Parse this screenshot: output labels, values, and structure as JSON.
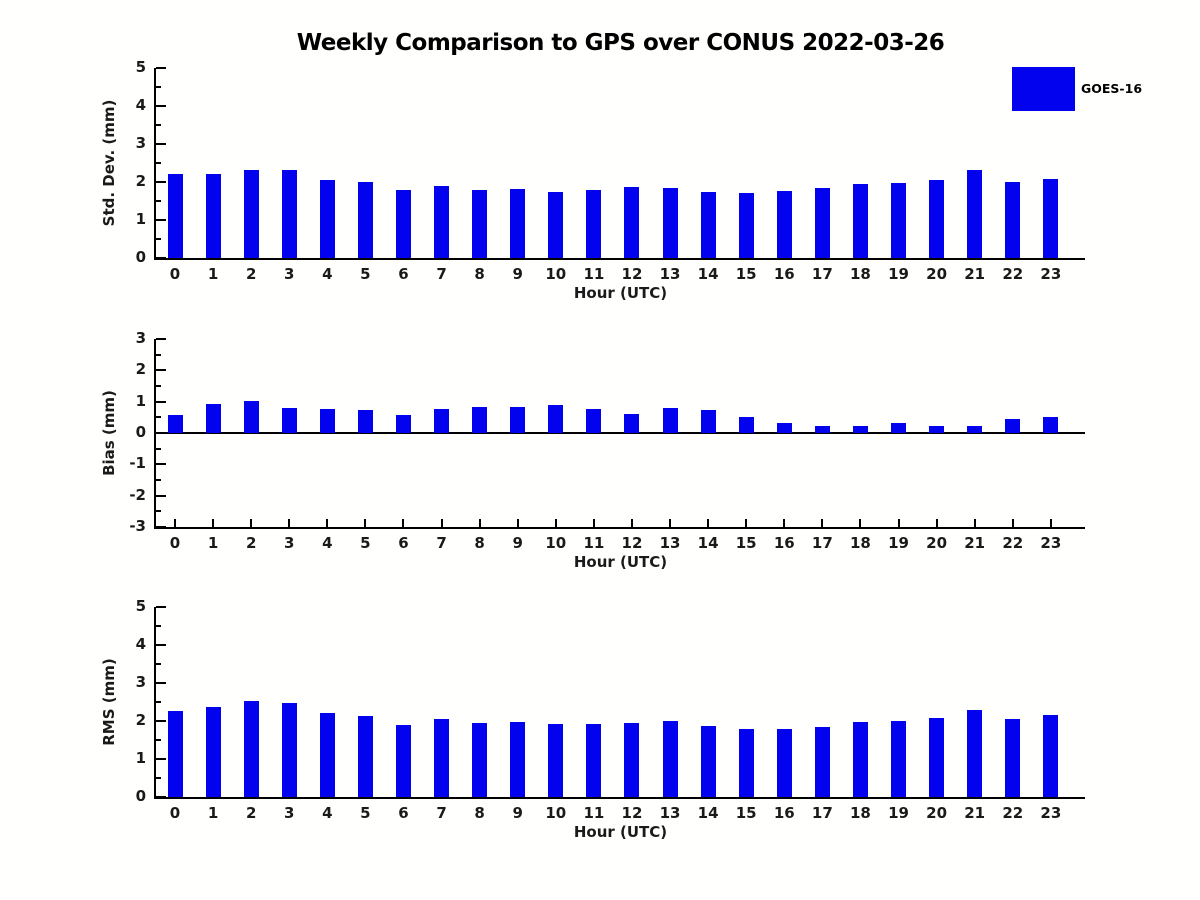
{
  "title": "Weekly Comparison to GPS over CONUS 2022-03-26",
  "legend": {
    "label": "GOES-16",
    "color": "#0202ee",
    "position": "top-right"
  },
  "colors": {
    "bar": "#0202ee",
    "axis": "#000000",
    "background": "#fffffe"
  },
  "chart_data": [
    {
      "type": "bar",
      "ylabel": "Std. Dev. (mm)",
      "xlabel": "Hour (UTC)",
      "ylim": [
        0,
        5
      ],
      "yticks": [
        0,
        1,
        2,
        3,
        4,
        5
      ],
      "minor_tick_step": 0.5,
      "grid": false,
      "zero_line": false,
      "categories": [
        "0",
        "1",
        "2",
        "3",
        "4",
        "5",
        "6",
        "7",
        "8",
        "9",
        "10",
        "11",
        "12",
        "13",
        "14",
        "15",
        "16",
        "17",
        "18",
        "19",
        "20",
        "21",
        "22",
        "23"
      ],
      "series": [
        {
          "name": "GOES-16",
          "values": [
            2.2,
            2.2,
            2.31,
            2.32,
            2.05,
            2.0,
            1.8,
            1.9,
            1.79,
            1.81,
            1.73,
            1.79,
            1.87,
            1.84,
            1.74,
            1.72,
            1.76,
            1.83,
            1.95,
            1.98,
            2.06,
            2.32,
            2.01,
            2.09
          ]
        }
      ]
    },
    {
      "type": "bar",
      "ylabel": "Bias (mm)",
      "xlabel": "Hour (UTC)",
      "ylim": [
        -3,
        3
      ],
      "yticks": [
        -3,
        -2,
        -1,
        0,
        1,
        2,
        3
      ],
      "minor_tick_step": 0.5,
      "grid": false,
      "zero_line": true,
      "categories": [
        "0",
        "1",
        "2",
        "3",
        "4",
        "5",
        "6",
        "7",
        "8",
        "9",
        "10",
        "11",
        "12",
        "13",
        "14",
        "15",
        "16",
        "17",
        "18",
        "19",
        "20",
        "21",
        "22",
        "23"
      ],
      "series": [
        {
          "name": "GOES-16",
          "values": [
            0.58,
            0.93,
            1.03,
            0.8,
            0.77,
            0.73,
            0.57,
            0.77,
            0.83,
            0.83,
            0.88,
            0.77,
            0.62,
            0.8,
            0.74,
            0.52,
            0.31,
            0.22,
            0.22,
            0.31,
            0.22,
            0.22,
            0.44,
            0.52
          ]
        }
      ]
    },
    {
      "type": "bar",
      "ylabel": "RMS (mm)",
      "xlabel": "Hour (UTC)",
      "ylim": [
        0,
        5
      ],
      "yticks": [
        0,
        1,
        2,
        3,
        4,
        5
      ],
      "minor_tick_step": 0.5,
      "grid": false,
      "zero_line": false,
      "categories": [
        "0",
        "1",
        "2",
        "3",
        "4",
        "5",
        "6",
        "7",
        "8",
        "9",
        "10",
        "11",
        "12",
        "13",
        "14",
        "15",
        "16",
        "17",
        "18",
        "19",
        "20",
        "21",
        "22",
        "23"
      ],
      "series": [
        {
          "name": "GOES-16",
          "values": [
            2.26,
            2.37,
            2.52,
            2.47,
            2.2,
            2.13,
            1.9,
            2.05,
            1.95,
            1.98,
            1.93,
            1.93,
            1.96,
            2.0,
            1.87,
            1.79,
            1.78,
            1.84,
            1.98,
            2.0,
            2.08,
            2.3,
            2.05,
            2.15
          ]
        }
      ]
    }
  ]
}
